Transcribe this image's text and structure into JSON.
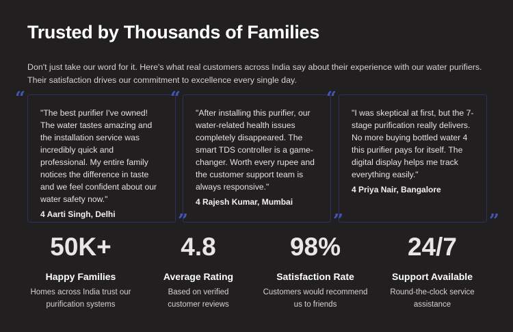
{
  "title": "Trusted by Thousands of Families",
  "intro": "Don't just take our word for it. Here's what real customers across India say about their experience with our water purifiers. Their satisfaction drives our commitment to excellence every single day.",
  "quote_open": "“",
  "quote_close": "”",
  "testimonials": [
    {
      "quote": "\"The best purifier I've owned! The water tastes amazing and the installation service was incredibly quick and professional. My entire family notices the difference in taste and we feel confident about our water safety now.\"",
      "author": "4 Aarti Singh, Delhi"
    },
    {
      "quote": "\"After installing this purifier, our water-related health issues completely disappeared. The smart TDS controller is a game-changer. Worth every rupee and the customer support team is always responsive.\"",
      "author": "4 Rajesh Kumar, Mumbai"
    },
    {
      "quote": "\"I was skeptical at first, but the 7-stage purification really delivers. No more buying bottled water 4 this purifier pays for itself. The digital display helps me track everything easily.\"",
      "author": "4 Priya Nair, Bangalore"
    }
  ],
  "stats": [
    {
      "value": "50K+",
      "label": "Happy Families",
      "desc": "Homes across India trust our purification systems"
    },
    {
      "value": "4.8",
      "label": "Average Rating",
      "desc": "Based on verified customer reviews"
    },
    {
      "value": "98%",
      "label": "Satisfaction Rate",
      "desc": "Customers would recommend us to friends"
    },
    {
      "value": "24/7",
      "label": "Support Available",
      "desc": "Round-the-clock service assistance"
    }
  ]
}
